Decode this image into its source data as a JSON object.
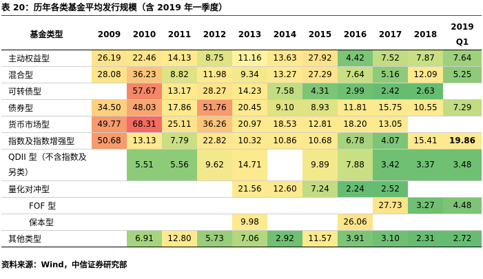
{
  "title": "表 20：历年各类基金平均发行规模（含 2019 年一季度）",
  "header": {
    "fund_type": "基金类型",
    "years": [
      "2009",
      "2010",
      "2011",
      "2012",
      "2013",
      "2014",
      "2015",
      "2016",
      "2017",
      "2018"
    ],
    "last_year": "2019",
    "last_quarter": "Q1"
  },
  "rows": [
    {
      "label": "主动权益型",
      "cells": [
        {
          "v": "26.19",
          "bg": "#fde48a"
        },
        {
          "v": "22.46",
          "bg": "#fde68c"
        },
        {
          "v": "14.13",
          "bg": "#fde98e"
        },
        {
          "v": "8.75",
          "bg": "#dfe383"
        },
        {
          "v": "11.16",
          "bg": "#fff2a0"
        },
        {
          "v": "13.63",
          "bg": "#fde98e"
        },
        {
          "v": "27.92",
          "bg": "#fde48a"
        },
        {
          "v": "4.42",
          "bg": "#7cc576"
        },
        {
          "v": "7.52",
          "bg": "#c1dc82"
        },
        {
          "v": "7.87",
          "bg": "#c8df83"
        },
        {
          "v": "7.64",
          "bg": "#9fd07c"
        }
      ]
    },
    {
      "label": "混合型",
      "cells": [
        {
          "v": "28.08",
          "bg": "#fde48a"
        },
        {
          "v": "36.23",
          "bg": "#fcc47a"
        },
        {
          "v": "8.82",
          "bg": "#dfe383"
        },
        {
          "v": "11.98",
          "bg": "#fde98e"
        },
        {
          "v": "9.34",
          "bg": "#f4e88c"
        },
        {
          "v": "13.27",
          "bg": "#fde98e"
        },
        {
          "v": "27.29",
          "bg": "#fde48a"
        },
        {
          "v": "7.64",
          "bg": "#c8df83"
        },
        {
          "v": "5.16",
          "bg": "#8dcb78"
        },
        {
          "v": "12.09",
          "bg": "#fde98e"
        },
        {
          "v": "5.25",
          "bg": "#8dcb78"
        }
      ]
    },
    {
      "label": "可转债型",
      "cells": [
        {
          "v": "",
          "bg": ""
        },
        {
          "v": "57.67",
          "bg": "#f58667"
        },
        {
          "v": "13.17",
          "bg": "#fde98e"
        },
        {
          "v": "28.27",
          "bg": "#fde48a"
        },
        {
          "v": "14.23",
          "bg": "#fde98e"
        },
        {
          "v": "7.58",
          "bg": "#c1dc82"
        },
        {
          "v": "4.31",
          "bg": "#7cc576"
        },
        {
          "v": "2.99",
          "bg": "#6fc073"
        },
        {
          "v": "2.42",
          "bg": "#66bd72"
        },
        {
          "v": "2.63",
          "bg": "#66bd72"
        },
        {
          "v": "",
          "bg": ""
        }
      ]
    },
    {
      "label": "债券型",
      "cells": [
        {
          "v": "34.50",
          "bg": "#fdd07f"
        },
        {
          "v": "48.03",
          "bg": "#f8a670"
        },
        {
          "v": "17.86",
          "bg": "#fde98e"
        },
        {
          "v": "51.76",
          "bg": "#f79a6c"
        },
        {
          "v": "20.45",
          "bg": "#fde98e"
        },
        {
          "v": "9.10",
          "bg": "#dfe383"
        },
        {
          "v": "8.93",
          "bg": "#dfe383"
        },
        {
          "v": "11.81",
          "bg": "#fde98e"
        },
        {
          "v": "15.75",
          "bg": "#fde98e"
        },
        {
          "v": "10.55",
          "bg": "#fde98e"
        },
        {
          "v": "7.29",
          "bg": "#c1dc82"
        }
      ]
    },
    {
      "label": "货币市场型",
      "cells": [
        {
          "v": "49.77",
          "bg": "#f79a6c"
        },
        {
          "v": "68.31",
          "bg": "#f26c63"
        },
        {
          "v": "25.11",
          "bg": "#fde48a"
        },
        {
          "v": "36.26",
          "bg": "#fcc47a"
        },
        {
          "v": "20.97",
          "bg": "#fde98e"
        },
        {
          "v": "18.53",
          "bg": "#fde98e"
        },
        {
          "v": "12.81",
          "bg": "#fde98e"
        },
        {
          "v": "18.20",
          "bg": "#fde98e"
        },
        {
          "v": "13.05",
          "bg": "#fde98e"
        },
        {
          "v": "",
          "bg": ""
        },
        {
          "v": "",
          "bg": ""
        }
      ]
    },
    {
      "label": "指数及指数增强型",
      "cells": [
        {
          "v": "50.68",
          "bg": "#f79a6c"
        },
        {
          "v": "13.13",
          "bg": "#fde98e"
        },
        {
          "v": "7.79",
          "bg": "#c8df83"
        },
        {
          "v": "22.82",
          "bg": "#fde68c"
        },
        {
          "v": "10.32",
          "bg": "#fde98e"
        },
        {
          "v": "10.86",
          "bg": "#fde98e"
        },
        {
          "v": "10.68",
          "bg": "#fde98e"
        },
        {
          "v": "6.78",
          "bg": "#a6d37d"
        },
        {
          "v": "4.07",
          "bg": "#7cc576"
        },
        {
          "v": "15.41",
          "bg": "#fde98e"
        },
        {
          "v": "19.86",
          "bg": "#fde98e",
          "bold": true
        }
      ]
    },
    {
      "label": "QDII 型（不含指数及另类）",
      "wrap": true,
      "cells": [
        {
          "v": "",
          "bg": ""
        },
        {
          "v": "5.51",
          "bg": "#8dcb78"
        },
        {
          "v": "5.56",
          "bg": "#8dcb78"
        },
        {
          "v": "9.62",
          "bg": "#f4e88c"
        },
        {
          "v": "14.71",
          "bg": "#fde98e"
        },
        {
          "v": "",
          "bg": ""
        },
        {
          "v": "9.89",
          "bg": "#f4e88c"
        },
        {
          "v": "7.88",
          "bg": "#c8df83"
        },
        {
          "v": "3.42",
          "bg": "#6fc073"
        },
        {
          "v": "3.37",
          "bg": "#6fc073"
        },
        {
          "v": "3.48",
          "bg": "#6fc073"
        }
      ]
    },
    {
      "label": "量化对冲型",
      "cells": [
        {
          "v": "",
          "bg": ""
        },
        {
          "v": "",
          "bg": ""
        },
        {
          "v": "",
          "bg": ""
        },
        {
          "v": "",
          "bg": ""
        },
        {
          "v": "21.56",
          "bg": "#fde98e"
        },
        {
          "v": "12.60",
          "bg": "#fde98e"
        },
        {
          "v": "7.24",
          "bg": "#c1dc82"
        },
        {
          "v": "2.24",
          "bg": "#66bd72"
        },
        {
          "v": "2.52",
          "bg": "#66bd72"
        },
        {
          "v": "",
          "bg": ""
        },
        {
          "v": "",
          "bg": ""
        }
      ]
    },
    {
      "label": "FOF 型",
      "indent": true,
      "cells": [
        {
          "v": "",
          "bg": ""
        },
        {
          "v": "",
          "bg": ""
        },
        {
          "v": "",
          "bg": ""
        },
        {
          "v": "",
          "bg": ""
        },
        {
          "v": "",
          "bg": ""
        },
        {
          "v": "",
          "bg": ""
        },
        {
          "v": "",
          "bg": ""
        },
        {
          "v": "",
          "bg": ""
        },
        {
          "v": "27.73",
          "bg": "#fde48a"
        },
        {
          "v": "3.27",
          "bg": "#6fc073"
        },
        {
          "v": "4.48",
          "bg": "#7cc576"
        }
      ]
    },
    {
      "label": "保本型",
      "indent": true,
      "cells": [
        {
          "v": "",
          "bg": ""
        },
        {
          "v": "",
          "bg": ""
        },
        {
          "v": "",
          "bg": ""
        },
        {
          "v": "",
          "bg": ""
        },
        {
          "v": "9.98",
          "bg": "#fde98e"
        },
        {
          "v": "",
          "bg": ""
        },
        {
          "v": "",
          "bg": ""
        },
        {
          "v": "26.06",
          "bg": "#fde48a"
        },
        {
          "v": "",
          "bg": ""
        },
        {
          "v": "",
          "bg": ""
        },
        {
          "v": "",
          "bg": ""
        }
      ]
    },
    {
      "label": "其他类型",
      "cells": [
        {
          "v": "",
          "bg": ""
        },
        {
          "v": "6.91",
          "bg": "#a6d37d"
        },
        {
          "v": "12.80",
          "bg": "#fde98e"
        },
        {
          "v": "5.73",
          "bg": "#97ce7a"
        },
        {
          "v": "7.06",
          "bg": "#b2d77f"
        },
        {
          "v": "2.92",
          "bg": "#6fc073"
        },
        {
          "v": "11.57",
          "bg": "#fde98e"
        },
        {
          "v": "3.91",
          "bg": "#7cc576"
        },
        {
          "v": "3.10",
          "bg": "#6fc073"
        },
        {
          "v": "2.31",
          "bg": "#66bd72"
        },
        {
          "v": "2.72",
          "bg": "#66bd72"
        }
      ]
    }
  ],
  "source": "资料来源：Wind，中信证券研究部"
}
